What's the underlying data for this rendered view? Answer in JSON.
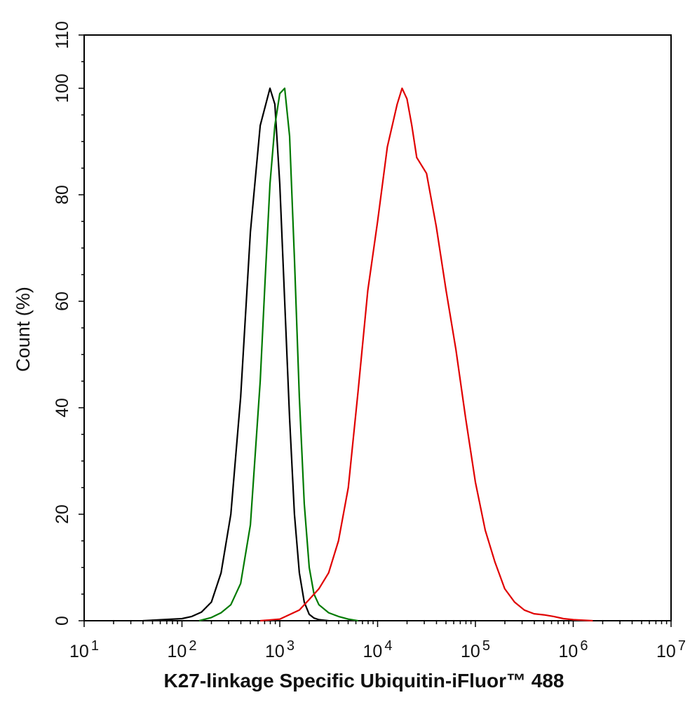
{
  "chart_data": {
    "type": "line",
    "title": "",
    "xlabel": "K27-linkage Specific Ubiquitin-iFluor™ 488",
    "ylabel": "Count  (%)",
    "x_scale": "log",
    "xlim": [
      10,
      10000000
    ],
    "ylim": [
      0,
      110
    ],
    "x_ticks": [
      {
        "value": 10,
        "base": "10",
        "exp": "1"
      },
      {
        "value": 100,
        "base": "10",
        "exp": "2"
      },
      {
        "value": 1000,
        "base": "10",
        "exp": "3"
      },
      {
        "value": 10000,
        "base": "10",
        "exp": "4"
      },
      {
        "value": 100000,
        "base": "10",
        "exp": "5"
      },
      {
        "value": 1000000,
        "base": "10",
        "exp": "6"
      },
      {
        "value": 10000000,
        "base": "10",
        "exp": "7"
      }
    ],
    "y_ticks": [
      0,
      20,
      40,
      60,
      80,
      100,
      110
    ],
    "grid": false,
    "legend": "none",
    "series": [
      {
        "color": "#000000",
        "points": [
          [
            40,
            0
          ],
          [
            63,
            0.2
          ],
          [
            100,
            0.4
          ],
          [
            126,
            0.8
          ],
          [
            158,
            1.6
          ],
          [
            200,
            3.5
          ],
          [
            251,
            9
          ],
          [
            316,
            20
          ],
          [
            398,
            42
          ],
          [
            501,
            73
          ],
          [
            631,
            93
          ],
          [
            794,
            100
          ],
          [
            891,
            97
          ],
          [
            1000,
            82
          ],
          [
            1122,
            60
          ],
          [
            1259,
            38
          ],
          [
            1413,
            20
          ],
          [
            1585,
            9
          ],
          [
            1778,
            3.5
          ],
          [
            2000,
            1.2
          ],
          [
            2239,
            0.5
          ],
          [
            2512,
            0.2
          ],
          [
            3162,
            0
          ]
        ]
      },
      {
        "color": "#007a00",
        "points": [
          [
            150,
            0
          ],
          [
            200,
            0.6
          ],
          [
            251,
            1.5
          ],
          [
            316,
            3
          ],
          [
            398,
            7
          ],
          [
            501,
            18
          ],
          [
            631,
            45
          ],
          [
            708,
            64
          ],
          [
            794,
            82
          ],
          [
            891,
            93
          ],
          [
            1000,
            99
          ],
          [
            1122,
            100
          ],
          [
            1259,
            91
          ],
          [
            1413,
            68
          ],
          [
            1585,
            42
          ],
          [
            1778,
            22
          ],
          [
            2000,
            10
          ],
          [
            2239,
            5
          ],
          [
            2512,
            3
          ],
          [
            3162,
            1.5
          ],
          [
            3981,
            0.8
          ],
          [
            5012,
            0.3
          ],
          [
            6310,
            0
          ]
        ]
      },
      {
        "color": "#e00000",
        "points": [
          [
            631,
            0
          ],
          [
            1000,
            0.3
          ],
          [
            1585,
            2
          ],
          [
            2000,
            4
          ],
          [
            2512,
            6
          ],
          [
            3162,
            9
          ],
          [
            3981,
            15
          ],
          [
            5012,
            25
          ],
          [
            6310,
            43
          ],
          [
            7943,
            62
          ],
          [
            10000,
            75
          ],
          [
            12589,
            89
          ],
          [
            14125,
            93
          ],
          [
            15849,
            97
          ],
          [
            17783,
            100
          ],
          [
            19953,
            98
          ],
          [
            22387,
            93
          ],
          [
            25119,
            87
          ],
          [
            31623,
            84
          ],
          [
            39811,
            74
          ],
          [
            50119,
            62
          ],
          [
            63096,
            51
          ],
          [
            79433,
            38
          ],
          [
            100000,
            26
          ],
          [
            125893,
            17
          ],
          [
            158489,
            11
          ],
          [
            199526,
            6
          ],
          [
            251189,
            3.5
          ],
          [
            316228,
            2
          ],
          [
            398107,
            1.3
          ],
          [
            501187,
            1.1
          ],
          [
            630957,
            0.8
          ],
          [
            794328,
            0.4
          ],
          [
            1000000,
            0.2
          ],
          [
            1584893,
            0
          ]
        ]
      }
    ]
  }
}
